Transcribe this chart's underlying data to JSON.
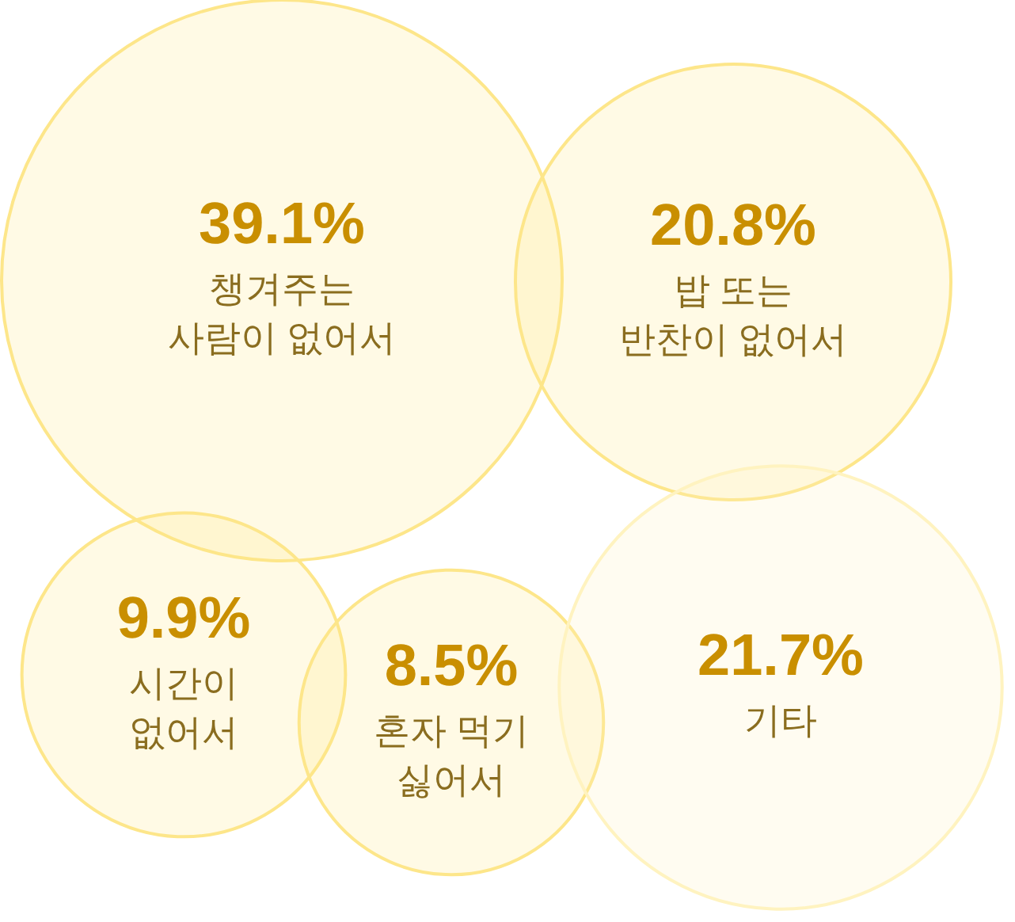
{
  "chart_data": {
    "type": "other",
    "categories": [
      "챙겨주는\n사람이 없어서",
      "밥 또는\n반찬이 없어서",
      "시간이\n없어서",
      "혼자 먹기\n싫어서",
      "기타"
    ],
    "values": [
      39.1,
      20.8,
      9.9,
      8.5,
      21.7
    ],
    "value_labels": [
      "39.1%",
      "20.8%",
      "9.9%",
      "8.5%",
      "21.7%"
    ],
    "colors": [
      "#fde68a",
      "#fde68a",
      "#fde68a",
      "#fde68a",
      "#fff3c0"
    ]
  }
}
